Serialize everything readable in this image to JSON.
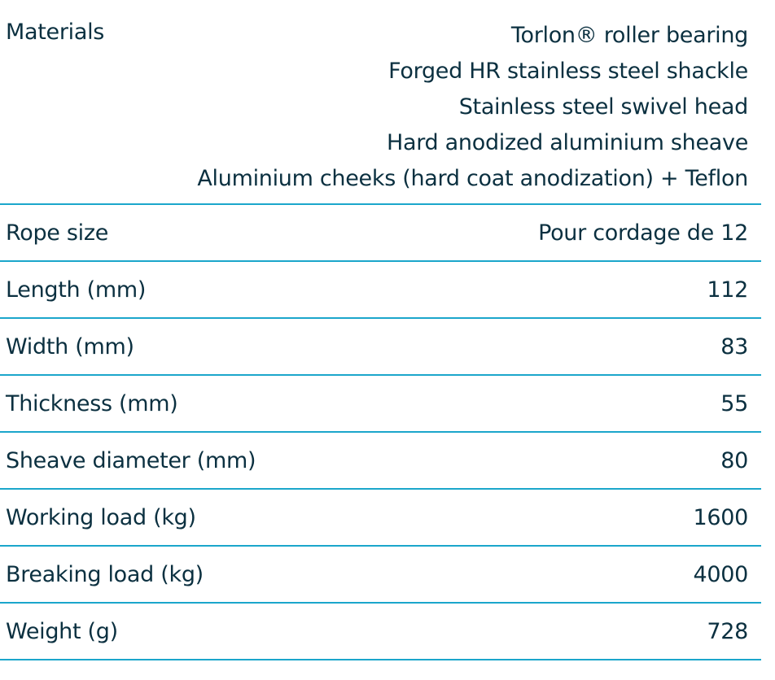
{
  "specs": {
    "materials": {
      "label": "Materials",
      "values": [
        "Torlon® roller bearing",
        "Forged HR stainless steel shackle",
        "Stainless steel swivel head",
        "Hard anodized aluminium sheave",
        "Aluminium cheeks (hard coat anodization) + Teflon"
      ]
    },
    "rows": [
      {
        "label": "Rope size",
        "value": "Pour cordage de 12"
      },
      {
        "label": "Length (mm)",
        "value": "112"
      },
      {
        "label": "Width (mm)",
        "value": "83"
      },
      {
        "label": "Thickness (mm)",
        "value": "55"
      },
      {
        "label": "Sheave diameter (mm)",
        "value": "80"
      },
      {
        "label": "Working load (kg)",
        "value": "1600"
      },
      {
        "label": "Breaking load (kg)",
        "value": "4000"
      },
      {
        "label": "Weight (g)",
        "value": "728"
      }
    ]
  },
  "colors": {
    "text": "#0b3040",
    "divider": "#1ba6cb"
  }
}
